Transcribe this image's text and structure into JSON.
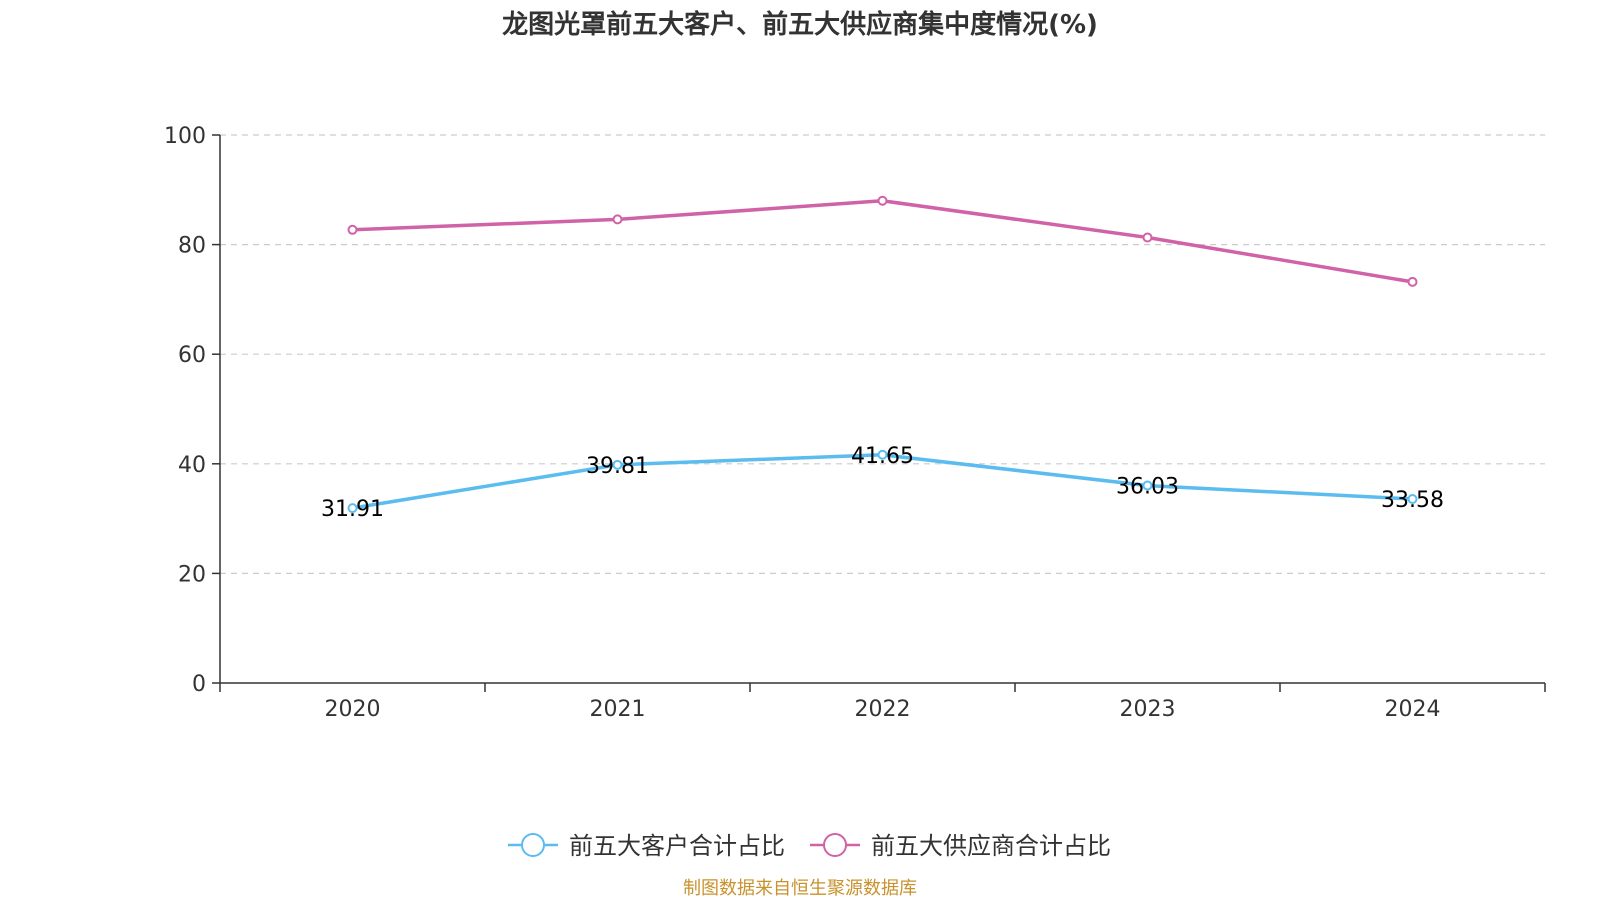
{
  "chart_data": {
    "type": "line",
    "title": "龙图光罩前五大客户、前五大供应商集中度情况(%)",
    "categories": [
      "2020",
      "2021",
      "2022",
      "2023",
      "2024"
    ],
    "ylim": [
      0,
      100
    ],
    "yticks": [
      0,
      20,
      40,
      60,
      80,
      100
    ],
    "grid": true,
    "legend_position": "bottom-center",
    "series": [
      {
        "name": "前五大客户合计占比",
        "values": [
          31.91,
          39.81,
          41.65,
          36.03,
          33.58
        ],
        "labels": [
          "31.91",
          "39.81",
          "41.65",
          "36.03",
          "33.58"
        ],
        "color": "#5bbcf0",
        "show_labels": true
      },
      {
        "name": "前五大供应商合计占比",
        "values": [
          82.7,
          84.6,
          88.0,
          81.3,
          73.2
        ],
        "color": "#d062a8",
        "show_labels": false
      }
    ],
    "source": "制图数据来自恒生聚源数据库"
  }
}
